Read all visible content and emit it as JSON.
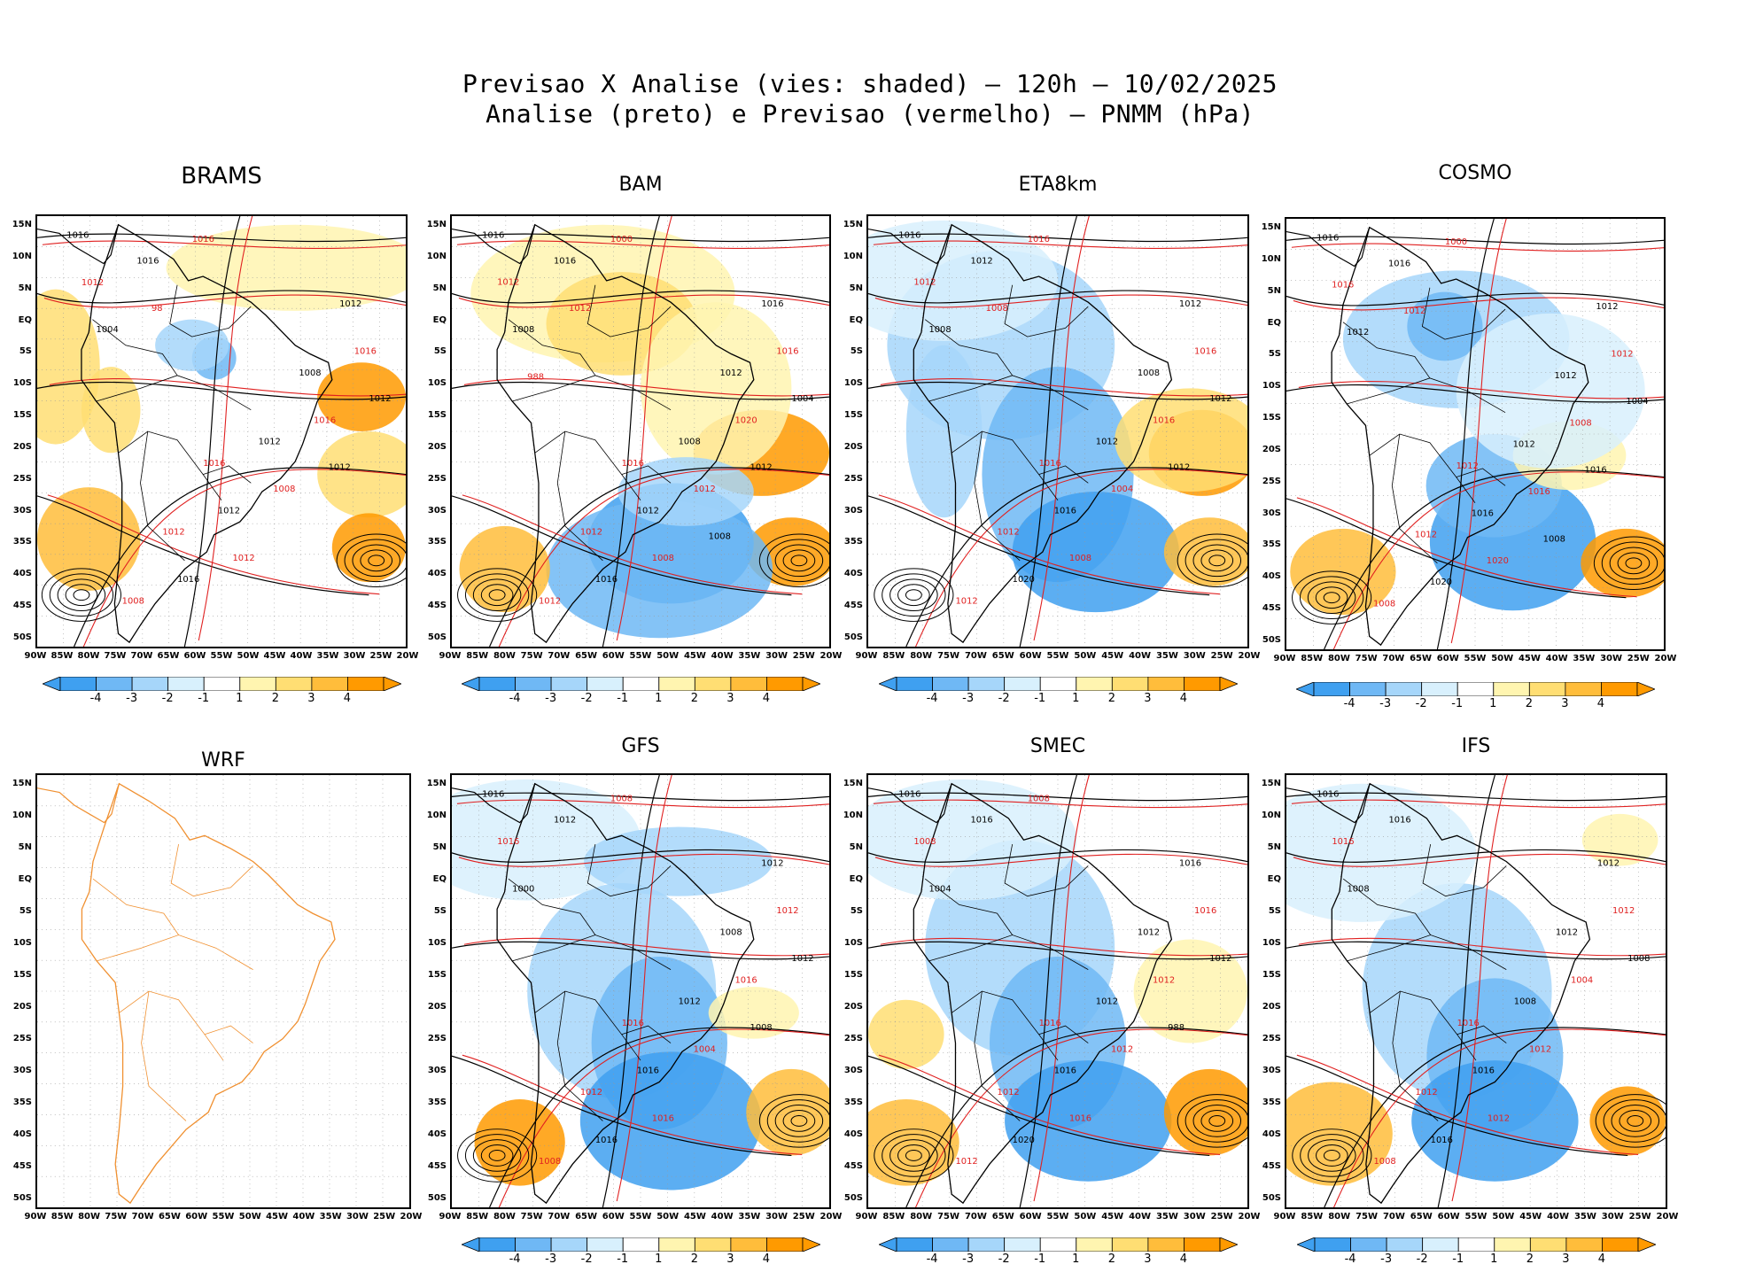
{
  "header": {
    "line1": "Previsao X Analise (vies: shaded) – 120h – 10/02/2025",
    "line2": "Analise (preto) e Previsao (vermelho) – PNMM (hPa)"
  },
  "axes": {
    "lat_labels": [
      "15N",
      "10N",
      "5N",
      "EQ",
      "5S",
      "10S",
      "15S",
      "20S",
      "25S",
      "30S",
      "35S",
      "40S",
      "45S",
      "50S"
    ],
    "lon_labels": [
      "90W",
      "85W",
      "80W",
      "75W",
      "70W",
      "65W",
      "60W",
      "55W",
      "50W",
      "45W",
      "40W",
      "35W",
      "30W",
      "25W",
      "20W"
    ]
  },
  "colorbar": {
    "labels": [
      "-4",
      "-3",
      "-2",
      "-1",
      "1",
      "2",
      "3",
      "4"
    ],
    "colors": [
      "#3fa0f0",
      "#6fb8f5",
      "#a6d6fa",
      "#d8f0fd",
      "#ffffff",
      "#fff5b0",
      "#ffde73",
      "#ffbd3b",
      "#ff9a00"
    ]
  },
  "legend_colors": {
    "analysis": "#000000",
    "forecast": "#e02020",
    "coast": "#f09030"
  },
  "panels": [
    {
      "name": "BRAMS",
      "isobars": [
        "1016",
        "1016",
        "1012",
        "1012",
        "1008",
        "1008",
        "1012",
        "1012",
        "1012",
        "1016",
        "1016",
        "1016",
        "1016",
        "1008",
        "1004",
        "1012",
        "1012",
        "1016",
        "1012",
        "98"
      ]
    },
    {
      "name": "BAM",
      "isobars": [
        "1016",
        "1016",
        "1016",
        "1012",
        "1012",
        "1012",
        "1008",
        "1012",
        "1012",
        "1016",
        "1016",
        "1020",
        "1016",
        "1012",
        "1008",
        "1008",
        "1004",
        "1000",
        "1012",
        "1012",
        "1008",
        "988"
      ]
    },
    {
      "name": "ETA8km",
      "isobars": [
        "1016",
        "1016",
        "1012",
        "1012",
        "1008",
        "1012",
        "1012",
        "1012",
        "1016",
        "1016",
        "1020",
        "1016",
        "1012",
        "1004",
        "1008",
        "1008",
        "1012",
        "1016",
        "1012",
        "1008"
      ]
    },
    {
      "name": "COSMO",
      "isobars": [
        "1016",
        "1012",
        "1012",
        "1012",
        "1012",
        "1008",
        "1012",
        "1016",
        "1016",
        "1012",
        "1020",
        "1008",
        "1016",
        "1016",
        "1012",
        "1020",
        "1004",
        "1000",
        "1016",
        "1012",
        "1008"
      ]
    },
    {
      "name": "WRF",
      "isobars": []
    },
    {
      "name": "GFS",
      "isobars": [
        "1016",
        "1016",
        "1012",
        "1012",
        "1008",
        "1008",
        "1012",
        "1016",
        "1016",
        "1012",
        "1016",
        "1016",
        "1012",
        "1004",
        "1000",
        "1016",
        "1012",
        "1008",
        "1008"
      ]
    },
    {
      "name": "SMEC",
      "isobars": [
        "1016",
        "1016",
        "1016",
        "1012",
        "1012",
        "1012",
        "1012",
        "1008",
        "1016",
        "1016",
        "1020",
        "1012",
        "1016",
        "1012",
        "1004",
        "1016",
        "1012",
        "1008",
        "988"
      ]
    },
    {
      "name": "IFS",
      "isobars": [
        "1016",
        "1016",
        "1012",
        "1012",
        "1012",
        "1008",
        "1008",
        "1016",
        "1016",
        "1012",
        "1016",
        "1004",
        "1016",
        "1012",
        "1008",
        "1012",
        "1008"
      ]
    }
  ]
}
